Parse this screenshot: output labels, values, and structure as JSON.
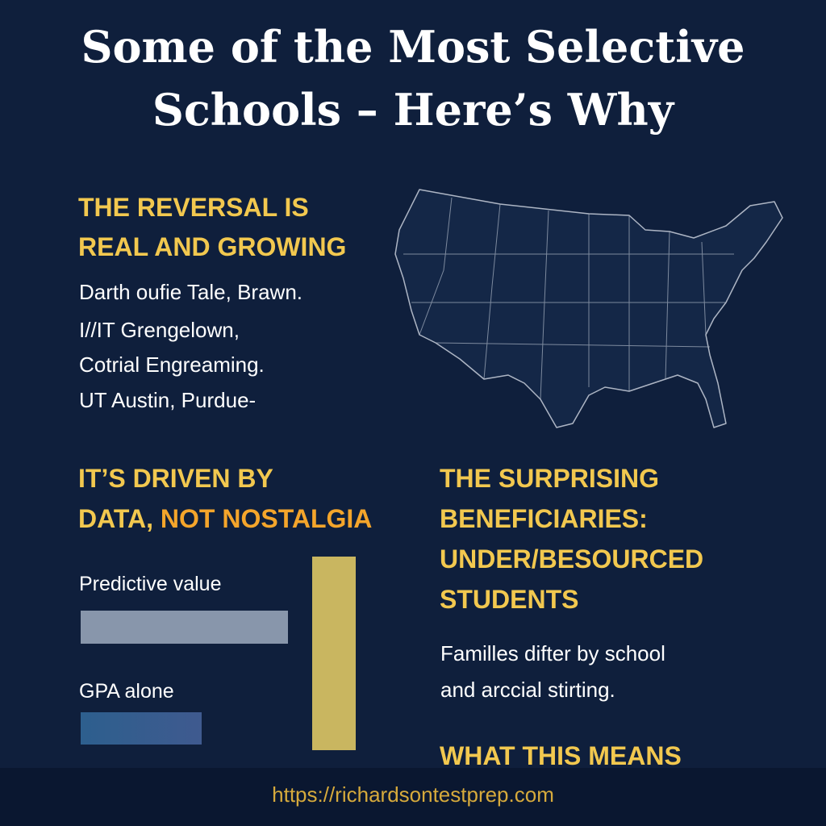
{
  "header": {
    "title_lines": [
      "Some of the Most Selective",
      "Schools – Here’s Why"
    ]
  },
  "reversal": {
    "heading_lines": [
      "THE REVERSAL IS",
      "REAL AND GROWING"
    ],
    "body_lines": [
      "Darth oufie Tale, Brawn.",
      "I//IT  Grengelown,",
      "Cotrial Engreaming.",
      "UT Austin, Purdue-"
    ]
  },
  "data_section": {
    "heading_line_1": "IT’S DRIVEN BY",
    "heading_line_2": "DATA,",
    "heading_highlight": "NOT NOSTALGIA",
    "bar_labels": [
      "Predictive value",
      "GPA alone"
    ]
  },
  "beneficiaries": {
    "heading_lines": [
      "THE SURPRISING",
      "BENEFICIARIES:",
      "UNDER/BESOURCED",
      "STUDENTS"
    ],
    "body_lines": [
      "Familles difter by school",
      "and arccial stirting."
    ]
  },
  "next_heading": "WHAT THIS MEANS",
  "footer": {
    "url": "https://richardsontestprep.com"
  }
}
